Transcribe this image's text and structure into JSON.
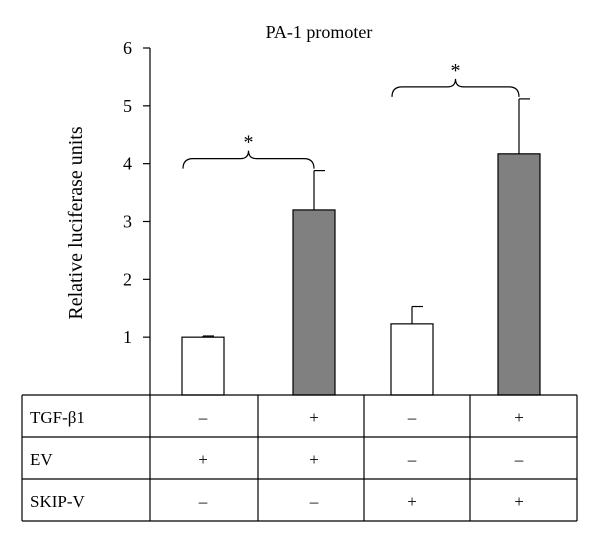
{
  "chart_data": {
    "type": "bar",
    "title": "PA-1 promoter",
    "ylabel": "Relative luciferase units",
    "ylim": [
      0,
      6
    ],
    "yticks": [
      1,
      2,
      3,
      4,
      5,
      6
    ],
    "grid": false,
    "legend": "none",
    "bars": [
      {
        "value": 1.0,
        "error": 0.02,
        "fill": "#ffffff"
      },
      {
        "value": 3.2,
        "error": 0.68,
        "fill": "#808080"
      },
      {
        "value": 1.23,
        "error": 0.3,
        "fill": "#ffffff"
      },
      {
        "value": 4.17,
        "error": 0.95,
        "fill": "#808080"
      }
    ],
    "significance": [
      {
        "between": [
          0,
          1
        ],
        "label": "*"
      },
      {
        "between": [
          2,
          3
        ],
        "label": "*"
      }
    ],
    "conditions_table": [
      {
        "label": "TGF-β1",
        "values": [
          "–",
          "+",
          "–",
          "+"
        ]
      },
      {
        "label": "EV",
        "values": [
          "+",
          "+",
          "–",
          "–"
        ]
      },
      {
        "label": "SKIP-V",
        "values": [
          "–",
          "–",
          "+",
          "+"
        ]
      }
    ]
  }
}
